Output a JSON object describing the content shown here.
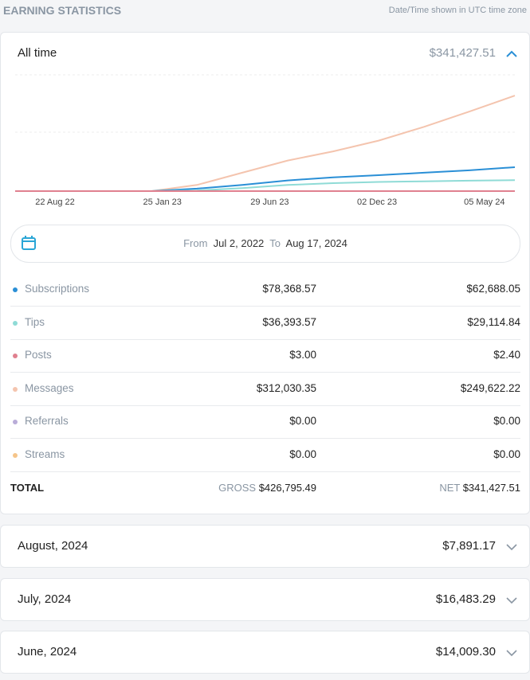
{
  "header": {
    "title": "EARNING STATISTICS",
    "note": "Date/Time shown in UTC time zone"
  },
  "summary": {
    "period": "All time",
    "total": "$341,427.51"
  },
  "chart": {
    "type": "line",
    "x_labels": [
      "22 Aug 22",
      "25 Jan 23",
      "29 Jun 23",
      "02 Dec 23",
      "05 May 24"
    ],
    "ylim": [
      0,
      380000
    ],
    "series": [
      {
        "color": "#f4c4ae",
        "values": [
          0,
          0,
          0,
          0,
          20000,
          60000,
          100000,
          130000,
          165000,
          210000,
          260000,
          312000
        ]
      },
      {
        "color": "#2a8fd6",
        "values": [
          0,
          0,
          0,
          0,
          8000,
          20000,
          35000,
          45000,
          52000,
          60000,
          68000,
          78000
        ]
      },
      {
        "color": "#8fdbd6",
        "values": [
          0,
          0,
          0,
          0,
          2000,
          10000,
          20000,
          26000,
          30000,
          32000,
          34000,
          36000
        ]
      },
      {
        "color": "#e0808f",
        "values": [
          0,
          0,
          0,
          0,
          0,
          1,
          1,
          2,
          2,
          3,
          3,
          3
        ]
      }
    ]
  },
  "date_range": {
    "from_label": "From",
    "from": "Jul 2, 2022",
    "to_label": "To",
    "to": "Aug 17, 2024"
  },
  "table": {
    "rows": [
      {
        "name": "Subscriptions",
        "color": "#2a8fd6",
        "gross": "$78,368.57",
        "net": "$62,688.05"
      },
      {
        "name": "Tips",
        "color": "#8fdbd6",
        "gross": "$36,393.57",
        "net": "$29,114.84"
      },
      {
        "name": "Posts",
        "color": "#e0808f",
        "gross": "$3.00",
        "net": "$2.40"
      },
      {
        "name": "Messages",
        "color": "#f4c4ae",
        "gross": "$312,030.35",
        "net": "$249,622.22"
      },
      {
        "name": "Referrals",
        "color": "#b9acd8",
        "gross": "$0.00",
        "net": "$0.00"
      },
      {
        "name": "Streams",
        "color": "#f5c58a",
        "gross": "$0.00",
        "net": "$0.00"
      }
    ],
    "total": {
      "label": "TOTAL",
      "gross_label": "GROSS",
      "gross": "$426,795.49",
      "net_label": "NET",
      "net": "$341,427.51"
    }
  },
  "months": [
    {
      "label": "August, 2024",
      "total": "$7,891.17"
    },
    {
      "label": "July, 2024",
      "total": "$16,483.29"
    },
    {
      "label": "June, 2024",
      "total": "$14,009.30"
    }
  ]
}
